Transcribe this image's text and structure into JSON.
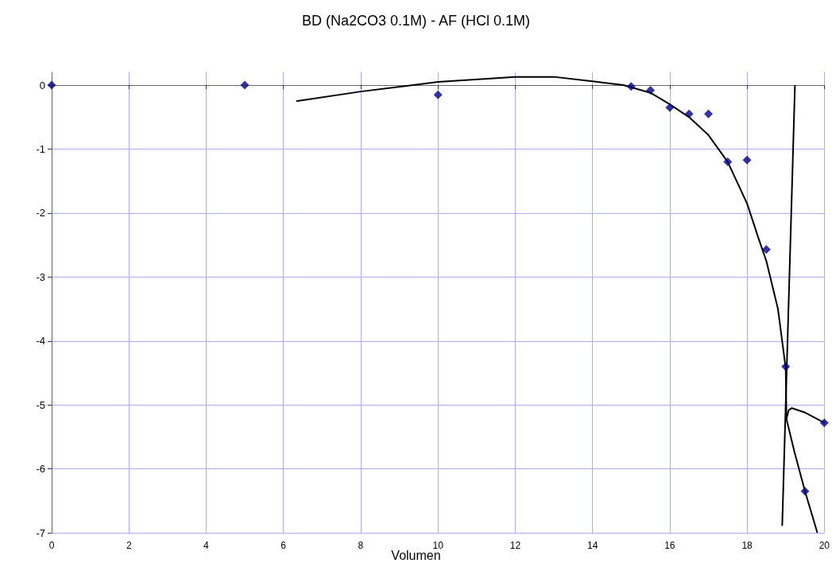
{
  "chart_data": {
    "type": "scatter",
    "title": "BD (Na2CO3 0.1M) - AF (HCl 0.1M)",
    "xlabel": "Volumen",
    "xlim": [
      0,
      20
    ],
    "xticks": [
      0,
      2,
      4,
      6,
      8,
      10,
      12,
      14,
      16,
      18,
      20
    ],
    "ylim": [
      -7,
      0.2
    ],
    "yticks": [
      -7,
      -6,
      -5,
      -4,
      -3,
      -2,
      -1,
      0
    ],
    "grid": true,
    "marker": "diamond",
    "x": [
      0,
      5,
      10,
      15,
      15.5,
      16,
      16.5,
      17,
      17.5,
      18,
      18.5,
      19,
      19.5,
      20
    ],
    "series": [
      {
        "color": "#000080",
        "values": [
          0,
          0,
          -0.15,
          -0.02,
          -0.08,
          -0.35,
          -0.45,
          -0.45,
          -1.2,
          -1.17,
          -2.57,
          -4.4,
          -6.35,
          -5.28
        ]
      },
      {
        "type": "line",
        "marker": "none",
        "color": "#000000",
        "x": [
          6.33,
          8,
          10,
          12,
          13,
          14,
          14.8,
          15.5,
          16,
          16.5,
          17,
          17.5,
          18,
          18.3,
          18.5,
          18.8,
          19,
          19.02,
          19.22,
          19.5,
          19.82
        ],
        "values": [
          -0.25,
          -0.1,
          0.05,
          0.13,
          0.13,
          0.06,
          0,
          -0.12,
          -0.3,
          -0.5,
          -0.78,
          -1.2,
          -1.85,
          -2.4,
          -2.75,
          -3.5,
          -4.42,
          -5.22,
          -5.72,
          -6.35,
          -7
        ]
      },
      {
        "type": "line",
        "marker": "none",
        "color": "#000000",
        "x": [
          19.02,
          19.08,
          19.16,
          19.5,
          20
        ],
        "values": [
          -5.22,
          -5.08,
          -5.05,
          -5.12,
          -5.28
        ]
      },
      {
        "type": "line",
        "marker": "none",
        "color": "#000000",
        "x": [
          19.24,
          18.91
        ],
        "values": [
          0,
          -6.89
        ]
      }
    ]
  }
}
